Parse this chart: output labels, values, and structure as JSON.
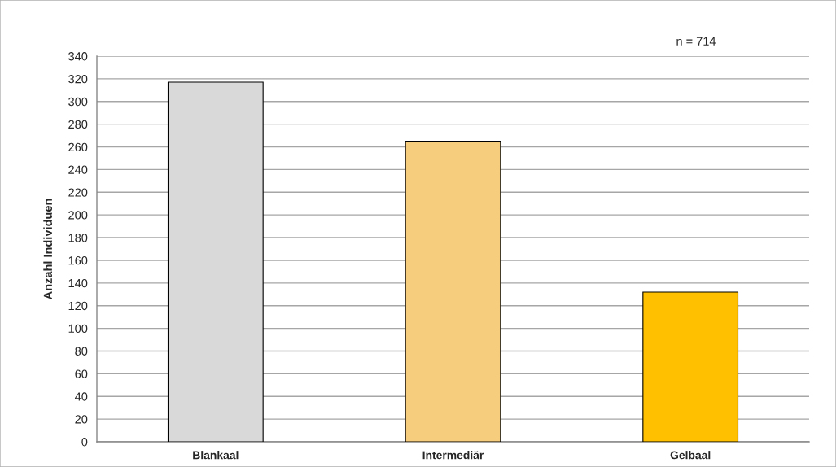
{
  "chart_data": {
    "type": "bar",
    "ylabel": "Anzahl Individuen",
    "annotations": [
      "n = 714"
    ],
    "categories": [
      "Blankaal",
      "Intermediär",
      "Gelbaal"
    ],
    "values": [
      317,
      265,
      132
    ],
    "colors": [
      "#d9d9d9",
      "#f6cd7c",
      "#ffc000"
    ],
    "ylim": [
      0,
      340
    ],
    "yticks": [
      0,
      20,
      40,
      60,
      80,
      100,
      120,
      140,
      160,
      180,
      200,
      220,
      240,
      260,
      280,
      300,
      320,
      340
    ],
    "grid": "y"
  }
}
